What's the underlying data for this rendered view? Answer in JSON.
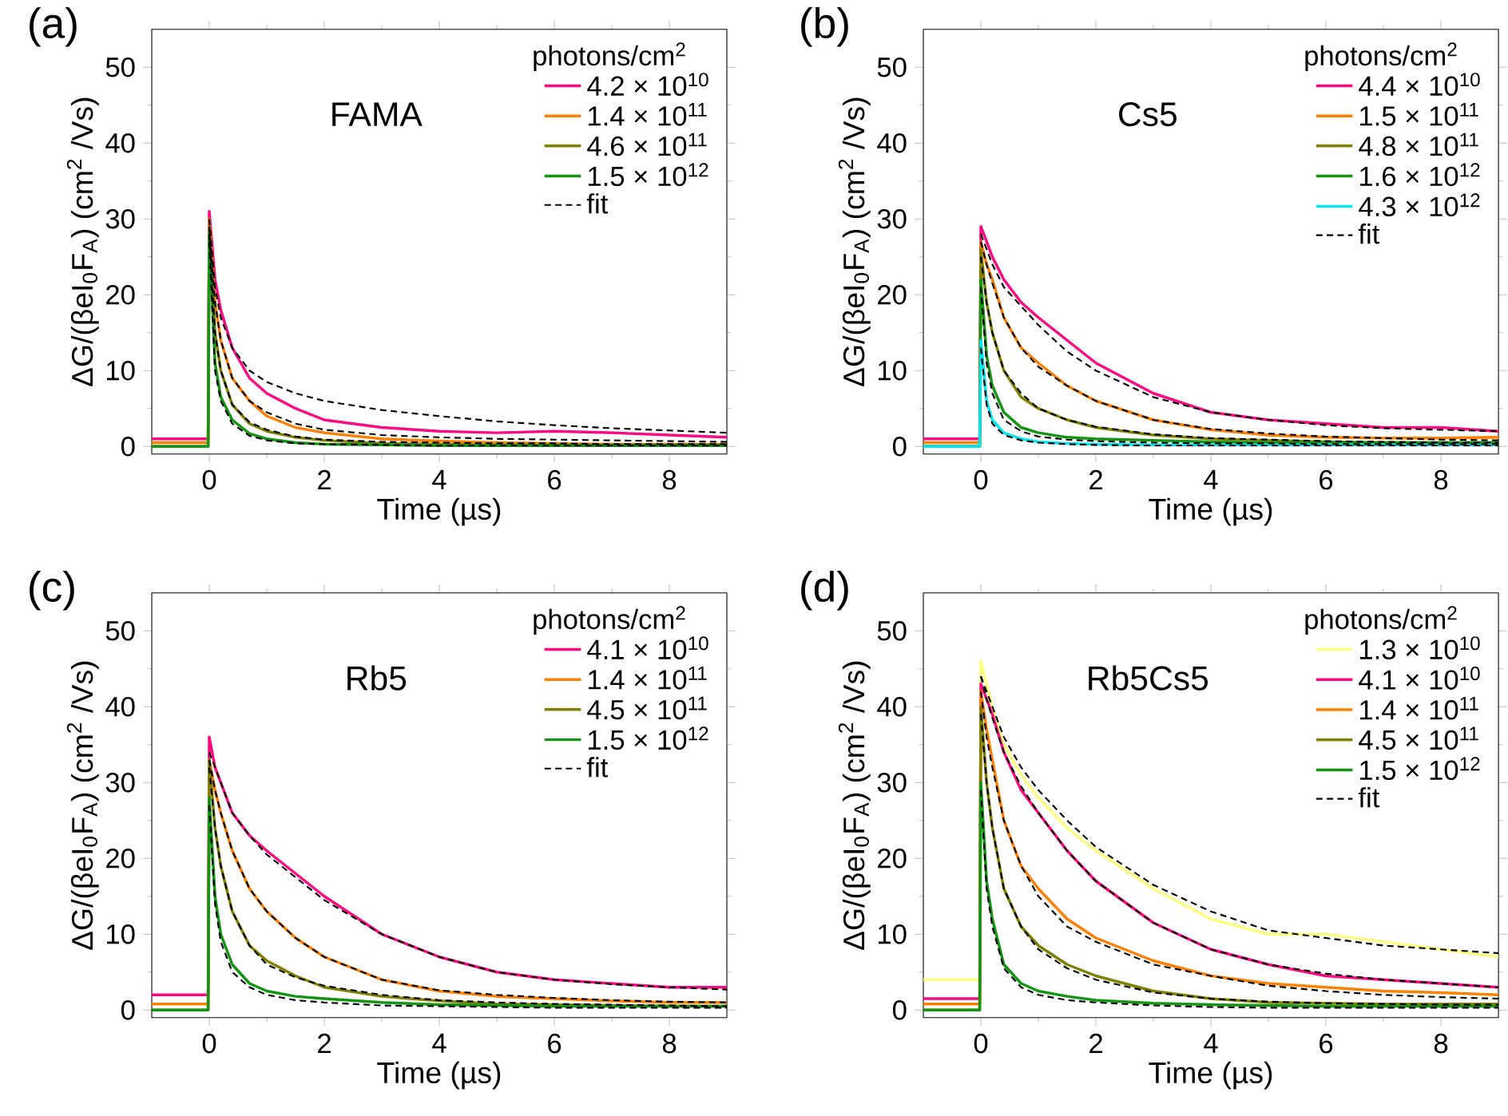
{
  "chart_data": [
    {
      "type": "line",
      "title": "(a)",
      "annotations": [
        "FAMA"
      ],
      "xlabel": "Time (µs)",
      "ylabel": "ΔG/(βeI$_{0}$F$_{A}$) (cm$^{2}$ /Vs)",
      "legend_title": "photons/cm$^{2}$",
      "legend": "top right",
      "xlim": [
        -1,
        9
      ],
      "xticks": [
        0,
        2,
        4,
        6,
        8
      ],
      "ylim": [
        -1,
        55
      ],
      "yticks": [
        0,
        10,
        20,
        30,
        40,
        50
      ],
      "x": [
        -1,
        -0.02,
        0,
        0.1,
        0.2,
        0.4,
        0.7,
        1,
        1.5,
        2,
        3,
        4,
        5,
        6,
        7,
        8,
        9
      ],
      "series": [
        {
          "name": "4.2 × 10$^{10}$",
          "color": "#ff0a80",
          "values": [
            1,
            1,
            31,
            22,
            18,
            13,
            9,
            7,
            5,
            3.5,
            2.5,
            2,
            1.8,
            2,
            1.8,
            1.5,
            1.2
          ]
        },
        {
          "name": "1.4 × 10$^{11}$",
          "color": "#ff8000",
          "values": [
            0.5,
            0.5,
            30,
            19,
            14,
            9,
            6,
            4,
            2.5,
            1.8,
            1,
            0.7,
            0.5,
            0.4,
            0.3,
            0.3,
            0.3
          ]
        },
        {
          "name": "4.6 × 10$^{11}$",
          "color": "#808000",
          "values": [
            0,
            0,
            29,
            15,
            10,
            5.5,
            3,
            2,
            1.2,
            0.8,
            0.4,
            0.3,
            0.2,
            0.2,
            0.2,
            0.2,
            0.2
          ]
        },
        {
          "name": "1.5 × 10$^{12}$",
          "color": "#139413",
          "values": [
            0,
            0,
            28,
            11,
            6.5,
            3.5,
            1.7,
            1,
            0.5,
            0.3,
            0.2,
            0.1,
            0.1,
            0.1,
            0.1,
            0.1,
            0.1
          ]
        },
        {
          "name": "fit",
          "color": "#000000",
          "line_style": "dashed",
          "values": [
            null,
            null,
            30,
            21,
            17,
            13,
            10,
            8.5,
            7,
            6,
            4.8,
            4,
            3.3,
            2.8,
            2.4,
            2.1,
            1.8
          ]
        },
        {
          "color": "#000000",
          "line_style": "dashed",
          "values": [
            null,
            null,
            29,
            19,
            14,
            9,
            6,
            4.5,
            3,
            2.2,
            1.5,
            1.2,
            1,
            0.9,
            0.8,
            0.7,
            0.6
          ]
        },
        {
          "color": "#000000",
          "line_style": "dashed",
          "values": [
            null,
            null,
            28,
            15,
            10,
            5.5,
            3.2,
            2.2,
            1.3,
            0.9,
            0.6,
            0.5,
            0.4,
            0.4,
            0.3,
            0.3,
            0.3
          ]
        },
        {
          "color": "#000000",
          "line_style": "dashed",
          "values": [
            null,
            null,
            27,
            10,
            6,
            3,
            1.4,
            0.8,
            0.4,
            0.3,
            0.2,
            0.1,
            0.1,
            0.1,
            0.1,
            0.1,
            0.1
          ]
        }
      ]
    },
    {
      "type": "line",
      "title": "(b)",
      "annotations": [
        "Cs5"
      ],
      "xlabel": "Time (µs)",
      "ylabel": "ΔG/(βeI$_{0}$F$_{A}$) (cm$^{2}$ /Vs)",
      "legend_title": "photons/cm$^{2}$",
      "legend": "top right",
      "xlim": [
        -1,
        9
      ],
      "xticks": [
        0,
        2,
        4,
        6,
        8
      ],
      "ylim": [
        -1,
        55
      ],
      "yticks": [
        0,
        10,
        20,
        30,
        40,
        50
      ],
      "x": [
        -1,
        -0.02,
        0,
        0.1,
        0.2,
        0.4,
        0.7,
        1,
        1.5,
        2,
        3,
        4,
        5,
        6,
        7,
        8,
        9
      ],
      "series": [
        {
          "name": "4.4 × 10$^{10}$",
          "color": "#ff0a80",
          "values": [
            1,
            1,
            29,
            27,
            25,
            22,
            19,
            17,
            14,
            11,
            7,
            4.5,
            3.5,
            3,
            2.5,
            2.5,
            2
          ]
        },
        {
          "name": "1.5 × 10$^{11}$",
          "color": "#ff8000",
          "values": [
            0.5,
            0.5,
            27,
            24,
            22,
            17,
            13,
            11,
            8,
            6,
            3.5,
            2.2,
            1.5,
            1.2,
            1.1,
            1.1,
            1.2
          ]
        },
        {
          "name": "4.8 × 10$^{11}$",
          "color": "#808000",
          "values": [
            0,
            0,
            26,
            19,
            15,
            10,
            6.5,
            5,
            3.5,
            2.5,
            1.5,
            1,
            0.8,
            0.6,
            0.5,
            0.5,
            0.5
          ]
        },
        {
          "name": "1.6 × 10$^{12}$",
          "color": "#139413",
          "values": [
            0,
            0,
            22,
            12,
            8,
            4.5,
            2.5,
            1.8,
            1.2,
            1,
            0.8,
            0.6,
            0.5,
            0.5,
            0.5,
            0.5,
            0.5
          ]
        },
        {
          "name": "4.3 × 10$^{12}$",
          "color": "#00e5ee",
          "values": [
            0,
            0,
            14,
            6,
            3.5,
            1.8,
            1,
            0.6,
            0.4,
            0.3,
            0.2,
            0.2,
            0.2,
            0.2,
            0.2,
            0.2,
            0.2
          ]
        },
        {
          "name": "fit",
          "color": "#000000",
          "line_style": "dashed",
          "values": [
            null,
            null,
            28,
            26,
            24,
            21,
            18.5,
            16,
            12.5,
            10,
            6.5,
            4.5,
            3.5,
            2.8,
            2.4,
            2.2,
            2
          ]
        },
        {
          "color": "#000000",
          "line_style": "dashed",
          "values": [
            null,
            null,
            27,
            24,
            21.5,
            17,
            13,
            10.5,
            8,
            6,
            3.5,
            2.3,
            1.7,
            1.3,
            1.1,
            0.9,
            0.8
          ]
        },
        {
          "color": "#000000",
          "line_style": "dashed",
          "values": [
            null,
            null,
            25,
            19,
            15,
            10,
            7,
            5,
            3.5,
            2.6,
            1.6,
            1.1,
            0.9,
            0.7,
            0.6,
            0.5,
            0.5
          ]
        },
        {
          "color": "#000000",
          "line_style": "dashed",
          "values": [
            null,
            null,
            21,
            11,
            7,
            3.5,
            2,
            1.3,
            0.9,
            0.7,
            0.5,
            0.4,
            0.4,
            0.3,
            0.3,
            0.3,
            0.3
          ]
        },
        {
          "color": "#000000",
          "line_style": "dashed",
          "values": [
            null,
            null,
            13,
            5.5,
            3,
            1.5,
            0.8,
            0.5,
            0.3,
            0.2,
            0.1,
            0.1,
            0.1,
            0.1,
            0.1,
            0.1,
            0.1
          ]
        }
      ]
    },
    {
      "type": "line",
      "title": "(c)",
      "annotations": [
        "Rb5"
      ],
      "xlabel": "Time (µs)",
      "ylabel": "ΔG/(βeI$_{0}$F$_{A}$) (cm$^{2}$ /Vs)",
      "legend_title": "photons/cm$^{2}$",
      "legend": "top right",
      "xlim": [
        -1,
        9
      ],
      "xticks": [
        0,
        2,
        4,
        6,
        8
      ],
      "ylim": [
        -1,
        55
      ],
      "yticks": [
        0,
        10,
        20,
        30,
        40,
        50
      ],
      "x": [
        -1,
        -0.02,
        0,
        0.1,
        0.2,
        0.4,
        0.7,
        1,
        1.5,
        2,
        3,
        4,
        5,
        6,
        7,
        8,
        9
      ],
      "series": [
        {
          "name": "4.1 × 10$^{10}$",
          "color": "#ff0a80",
          "values": [
            2,
            2,
            36,
            32,
            30,
            26,
            23,
            21,
            18,
            15,
            10,
            7,
            5,
            4,
            3.5,
            3,
            3
          ]
        },
        {
          "name": "1.4 × 10$^{11}$",
          "color": "#ff8000",
          "values": [
            0.8,
            0.8,
            33,
            29,
            26,
            21,
            16,
            13,
            9.5,
            7,
            4,
            2.5,
            1.8,
            1.5,
            1.2,
            1,
            1
          ]
        },
        {
          "name": "4.5 × 10$^{11}$",
          "color": "#808000",
          "values": [
            0,
            0,
            33,
            24,
            19,
            13,
            8.5,
            6.5,
            4.5,
            3,
            1.8,
            1.2,
            0.8,
            0.7,
            0.6,
            0.5,
            0.5
          ]
        },
        {
          "name": "1.5 × 10$^{12}$",
          "color": "#139413",
          "values": [
            0,
            0,
            28,
            15,
            10,
            6,
            3.5,
            2.5,
            1.8,
            1.5,
            1,
            0.7,
            0.6,
            0.5,
            0.5,
            0.5,
            0.5
          ]
        },
        {
          "name": "fit",
          "color": "#000000",
          "line_style": "dashed",
          "values": [
            null,
            null,
            34,
            32,
            30,
            26,
            23,
            20.5,
            17.5,
            14.5,
            10,
            7,
            5,
            4,
            3.4,
            3,
            2.7
          ]
        },
        {
          "color": "#000000",
          "line_style": "dashed",
          "values": [
            null,
            null,
            33,
            29,
            26,
            21,
            16,
            13,
            9.5,
            7,
            4,
            2.6,
            2,
            1.6,
            1.3,
            1.1,
            1
          ]
        },
        {
          "color": "#000000",
          "line_style": "dashed",
          "values": [
            null,
            null,
            32,
            24,
            19,
            13,
            8.5,
            6,
            4.3,
            3.2,
            2,
            1.3,
            1,
            0.8,
            0.7,
            0.6,
            0.5
          ]
        },
        {
          "color": "#000000",
          "line_style": "dashed",
          "values": [
            null,
            null,
            27,
            14,
            9,
            5,
            3,
            2,
            1.3,
            1,
            0.6,
            0.5,
            0.4,
            0.3,
            0.3,
            0.3,
            0.3
          ]
        }
      ]
    },
    {
      "type": "line",
      "title": "(d)",
      "annotations": [
        "Rb5Cs5"
      ],
      "xlabel": "Time (µs)",
      "ylabel": "ΔG/(βeI$_{0}$F$_{A}$) (cm$^{2}$ /Vs)",
      "legend_title": "photons/cm$^{2}$",
      "legend": "top right",
      "xlim": [
        -1,
        9
      ],
      "xticks": [
        0,
        2,
        4,
        6,
        8
      ],
      "ylim": [
        -1,
        55
      ],
      "yticks": [
        0,
        10,
        20,
        30,
        40,
        50
      ],
      "x": [
        -1,
        -0.02,
        0,
        0.1,
        0.2,
        0.4,
        0.7,
        1,
        1.5,
        2,
        3,
        4,
        5,
        6,
        7,
        8,
        9
      ],
      "series": [
        {
          "name": "1.3 × 10$^{10}$",
          "color": "#ffff80",
          "values": [
            4,
            4,
            46,
            43,
            40,
            35,
            31,
            28,
            24,
            21,
            16,
            12,
            10,
            10,
            9,
            8,
            7
          ]
        },
        {
          "name": "4.1 × 10$^{10}$",
          "color": "#ff0a80",
          "values": [
            1.5,
            1.5,
            43,
            41,
            39,
            34,
            29,
            26,
            21,
            17,
            11.5,
            8,
            6,
            4.5,
            4,
            3.5,
            3
          ]
        },
        {
          "name": "1.4 × 10$^{11}$",
          "color": "#ff8000",
          "values": [
            0.8,
            0.8,
            42,
            37,
            33,
            25,
            19,
            16,
            12,
            9.5,
            6.5,
            4.5,
            3.5,
            3,
            2.5,
            2.3,
            2
          ]
        },
        {
          "name": "4.5 × 10$^{11}$",
          "color": "#808000",
          "values": [
            0,
            0,
            40,
            30,
            24,
            16,
            11,
            8.5,
            6,
            4.5,
            2.5,
            1.5,
            1,
            0.9,
            0.8,
            0.8,
            0.8
          ]
        },
        {
          "name": "1.5 × 10$^{12}$",
          "color": "#139413",
          "values": [
            0,
            0,
            30,
            17,
            12,
            6,
            3.5,
            2.5,
            1.8,
            1.3,
            0.9,
            0.7,
            0.6,
            0.5,
            0.5,
            0.5,
            0.5
          ]
        },
        {
          "name": "fit",
          "color": "#000000",
          "line_style": "dashed",
          "values": [
            null,
            null,
            44,
            42,
            40,
            36,
            32,
            29,
            25,
            21.5,
            16.5,
            13,
            10.5,
            9.5,
            8.5,
            8,
            7.5
          ]
        },
        {
          "color": "#000000",
          "line_style": "dashed",
          "values": [
            null,
            null,
            44,
            41,
            38.5,
            34,
            29.5,
            26,
            21,
            17,
            11.5,
            8,
            6,
            4.8,
            4,
            3.5,
            3
          ]
        },
        {
          "color": "#000000",
          "line_style": "dashed",
          "values": [
            null,
            null,
            42,
            36,
            32,
            25,
            19,
            15,
            11,
            9,
            6,
            4.5,
            3.2,
            2.5,
            2,
            1.7,
            1.5
          ]
        },
        {
          "color": "#000000",
          "line_style": "dashed",
          "values": [
            null,
            null,
            39,
            30,
            24,
            16,
            11,
            8,
            5.5,
            4,
            2.3,
            1.5,
            1.1,
            0.9,
            0.8,
            0.7,
            0.7
          ]
        },
        {
          "color": "#000000",
          "line_style": "dashed",
          "values": [
            null,
            null,
            29,
            16,
            11,
            5.5,
            3,
            2,
            1.3,
            1,
            0.6,
            0.4,
            0.3,
            0.3,
            0.3,
            0.3,
            0.3
          ]
        }
      ]
    }
  ]
}
